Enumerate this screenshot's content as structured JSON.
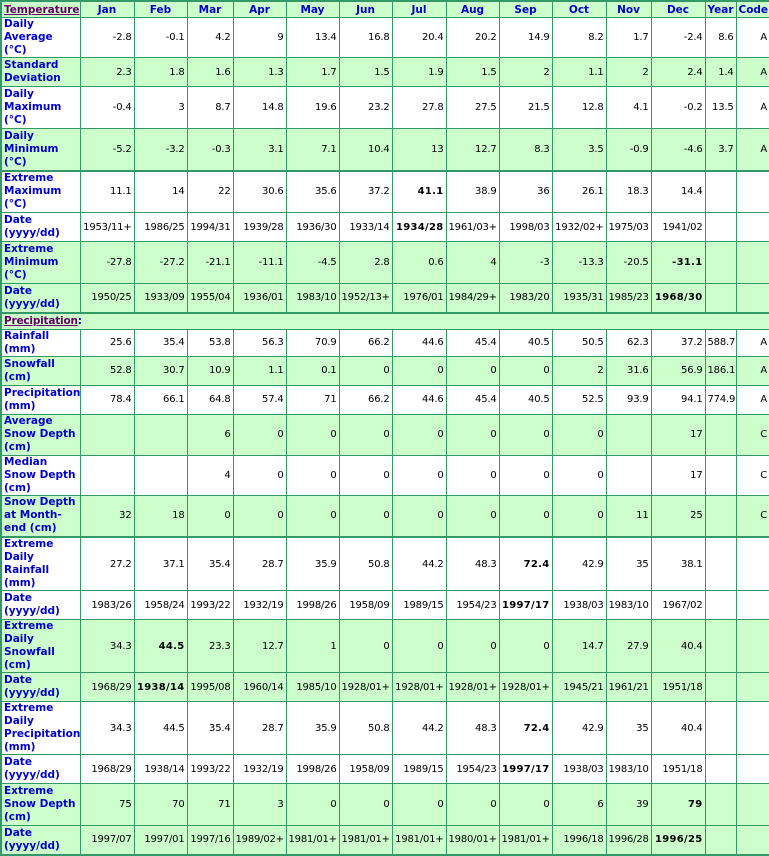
{
  "colors": {
    "accent_green": "#ccffcc",
    "border": "#339966",
    "label_blue": "#0000cc",
    "section_purple": "#660066"
  },
  "columns": [
    "Jan",
    "Feb",
    "Mar",
    "Apr",
    "May",
    "Jun",
    "Jul",
    "Aug",
    "Sep",
    "Oct",
    "Nov",
    "Dec",
    "Year",
    "Code"
  ],
  "sections": [
    {
      "title": "Temperature",
      "rows": [
        {
          "label": "Daily Average (°C)",
          "bg": "w",
          "values": [
            "-2.8",
            "-0.1",
            "4.2",
            "9",
            "13.4",
            "16.8",
            "20.4",
            "20.2",
            "14.9",
            "8.2",
            "1.7",
            "-2.4",
            "8.6",
            "A"
          ],
          "bold": []
        },
        {
          "label": "Standard Deviation",
          "bg": "g",
          "values": [
            "2.3",
            "1.8",
            "1.6",
            "1.3",
            "1.7",
            "1.5",
            "1.9",
            "1.5",
            "2",
            "1.1",
            "2",
            "2.4",
            "1.4",
            "A"
          ],
          "bold": []
        },
        {
          "label": "Daily Maximum (°C)",
          "bg": "w",
          "values": [
            "-0.4",
            "3",
            "8.7",
            "14.8",
            "19.6",
            "23.2",
            "27.8",
            "27.5",
            "21.5",
            "12.8",
            "4.1",
            "-0.2",
            "13.5",
            "A"
          ],
          "bold": []
        },
        {
          "label": "Daily Minimum (°C)",
          "bg": "g",
          "values": [
            "-5.2",
            "-3.2",
            "-0.3",
            "3.1",
            "7.1",
            "10.4",
            "13",
            "12.7",
            "8.3",
            "3.5",
            "-0.9",
            "-4.6",
            "3.7",
            "A"
          ],
          "bold": []
        },
        {
          "label": "Extreme Maximum (°C)",
          "bg": "w",
          "grp": true,
          "values": [
            "11.1",
            "14",
            "22",
            "30.6",
            "35.6",
            "37.2",
            "41.1",
            "38.9",
            "36",
            "26.1",
            "18.3",
            "14.4",
            "",
            ""
          ],
          "bold": [
            6
          ]
        },
        {
          "label": "Date (yyyy/dd)",
          "bg": "w",
          "values": [
            "1953/11+",
            "1986/25",
            "1994/31",
            "1939/28",
            "1936/30",
            "1933/14",
            "1934/28",
            "1961/03+",
            "1998/03",
            "1932/02+",
            "1975/03",
            "1941/02",
            "",
            ""
          ],
          "bold": [
            6
          ]
        },
        {
          "label": "Extreme Minimum (°C)",
          "bg": "g",
          "values": [
            "-27.8",
            "-27.2",
            "-21.1",
            "-11.1",
            "-4.5",
            "2.8",
            "0.6",
            "4",
            "-3",
            "-13.3",
            "-20.5",
            "-31.1",
            "",
            ""
          ],
          "bold": [
            11
          ]
        },
        {
          "label": "Date (yyyy/dd)",
          "bg": "g",
          "values": [
            "1950/25",
            "1933/09",
            "1955/04",
            "1936/01",
            "1983/10",
            "1952/13+",
            "1976/01",
            "1984/29+",
            "1983/20",
            "1935/31",
            "1985/23",
            "1968/30",
            "",
            ""
          ],
          "bold": [
            11
          ]
        }
      ]
    },
    {
      "title": "Precipitation",
      "rows": [
        {
          "label": "Rainfall (mm)",
          "bg": "w",
          "values": [
            "25.6",
            "35.4",
            "53.8",
            "56.3",
            "70.9",
            "66.2",
            "44.6",
            "45.4",
            "40.5",
            "50.5",
            "62.3",
            "37.2",
            "588.7",
            "A"
          ],
          "bold": []
        },
        {
          "label": "Snowfall (cm)",
          "bg": "g",
          "values": [
            "52.8",
            "30.7",
            "10.9",
            "1.1",
            "0.1",
            "0",
            "0",
            "0",
            "0",
            "2",
            "31.6",
            "56.9",
            "186.1",
            "A"
          ],
          "bold": []
        },
        {
          "label": "Precipitation (mm)",
          "bg": "w",
          "values": [
            "78.4",
            "66.1",
            "64.8",
            "57.4",
            "71",
            "66.2",
            "44.6",
            "45.4",
            "40.5",
            "52.5",
            "93.9",
            "94.1",
            "774.9",
            "A"
          ],
          "bold": []
        },
        {
          "label": "Average Snow Depth (cm)",
          "bg": "g",
          "values": [
            "",
            "",
            "6",
            "0",
            "0",
            "0",
            "0",
            "0",
            "0",
            "0",
            "",
            "17",
            "",
            "C"
          ],
          "bold": []
        },
        {
          "label": "Median Snow Depth (cm)",
          "bg": "w",
          "values": [
            "",
            "",
            "4",
            "0",
            "0",
            "0",
            "0",
            "0",
            "0",
            "0",
            "",
            "17",
            "",
            "C"
          ],
          "bold": []
        },
        {
          "label": "Snow Depth at Month-end (cm)",
          "bg": "g",
          "values": [
            "32",
            "18",
            "0",
            "0",
            "0",
            "0",
            "0",
            "0",
            "0",
            "0",
            "11",
            "25",
            "",
            "C"
          ],
          "bold": []
        },
        {
          "label": "Extreme Daily Rainfall (mm)",
          "bg": "w",
          "grp": true,
          "values": [
            "27.2",
            "37.1",
            "35.4",
            "28.7",
            "35.9",
            "50.8",
            "44.2",
            "48.3",
            "72.4",
            "42.9",
            "35",
            "38.1",
            "",
            ""
          ],
          "bold": [
            8
          ]
        },
        {
          "label": "Date (yyyy/dd)",
          "bg": "w",
          "values": [
            "1983/26",
            "1958/24",
            "1993/22",
            "1932/19",
            "1998/26",
            "1958/09",
            "1989/15",
            "1954/23",
            "1997/17",
            "1938/03",
            "1983/10",
            "1967/02",
            "",
            ""
          ],
          "bold": [
            8
          ]
        },
        {
          "label": "Extreme Daily Snowfall (cm)",
          "bg": "g",
          "values": [
            "34.3",
            "44.5",
            "23.3",
            "12.7",
            "1",
            "0",
            "0",
            "0",
            "0",
            "14.7",
            "27.9",
            "40.4",
            "",
            ""
          ],
          "bold": [
            1
          ]
        },
        {
          "label": "Date (yyyy/dd)",
          "bg": "g",
          "values": [
            "1968/29",
            "1938/14",
            "1995/08",
            "1960/14",
            "1985/10",
            "1928/01+",
            "1928/01+",
            "1928/01+",
            "1928/01+",
            "1945/21",
            "1961/21",
            "1951/18",
            "",
            ""
          ],
          "bold": [
            1
          ]
        },
        {
          "label": "Extreme Daily Precipitation (mm)",
          "bg": "w",
          "values": [
            "34.3",
            "44.5",
            "35.4",
            "28.7",
            "35.9",
            "50.8",
            "44.2",
            "48.3",
            "72.4",
            "42.9",
            "35",
            "40.4",
            "",
            ""
          ],
          "bold": [
            8
          ]
        },
        {
          "label": "Date (yyyy/dd)",
          "bg": "w",
          "values": [
            "1968/29",
            "1938/14",
            "1993/22",
            "1932/19",
            "1998/26",
            "1958/09",
            "1989/15",
            "1954/23",
            "1997/17",
            "1938/03",
            "1983/10",
            "1951/18",
            "",
            ""
          ],
          "bold": [
            8
          ]
        },
        {
          "label": "Extreme Snow Depth (cm)",
          "bg": "g",
          "values": [
            "75",
            "70",
            "71",
            "3",
            "0",
            "0",
            "0",
            "0",
            "0",
            "6",
            "39",
            "79",
            "",
            ""
          ],
          "bold": [
            11
          ]
        },
        {
          "label": "Date (yyyy/dd)",
          "bg": "g",
          "values": [
            "1997/07",
            "1997/01",
            "1997/16",
            "1989/02+",
            "1981/01+",
            "1981/01+",
            "1981/01+",
            "1980/01+",
            "1981/01+",
            "1996/18",
            "1996/28",
            "1996/25",
            "",
            ""
          ],
          "bold": [
            11
          ]
        }
      ]
    }
  ]
}
